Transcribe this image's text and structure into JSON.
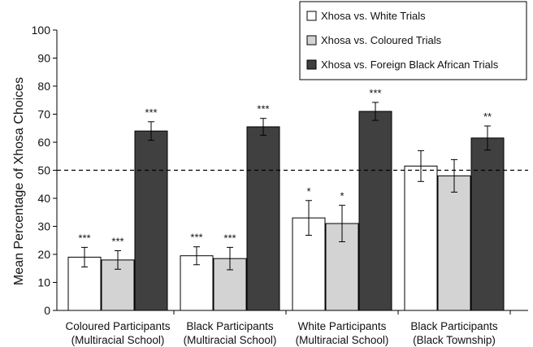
{
  "chart_data": {
    "type": "bar",
    "ylabel": "Mean Percentage of Xhosa Choices",
    "ylim": [
      0,
      100
    ],
    "yticks": [
      0,
      10,
      20,
      30,
      40,
      50,
      60,
      70,
      80,
      90,
      100
    ],
    "reference_line": 50,
    "categories": [
      [
        "Coloured Participants",
        "(Multiracial School)"
      ],
      [
        "Black Participants",
        "(Multiracial School)"
      ],
      [
        "White Participants",
        "(Multiracial School)"
      ],
      [
        "Black Participants",
        "(Black Township)"
      ]
    ],
    "series": [
      {
        "name": "Xhosa vs. White Trials",
        "color": "#ffffff",
        "values": [
          19,
          19.5,
          33,
          51.5
        ],
        "errors": [
          3.5,
          3.2,
          6.2,
          5.5
        ],
        "sig": [
          "***",
          "***",
          "*",
          ""
        ]
      },
      {
        "name": "Xhosa vs. Coloured Trials",
        "color": "#d3d3d3",
        "values": [
          18,
          18.5,
          31,
          48
        ],
        "errors": [
          3.3,
          4.0,
          6.5,
          5.8
        ],
        "sig": [
          "***",
          "***",
          "*",
          ""
        ]
      },
      {
        "name": "Xhosa vs. Foreign Black African Trials",
        "color": "#404040",
        "values": [
          64,
          65.5,
          71,
          61.5
        ],
        "errors": [
          3.3,
          3.0,
          3.2,
          4.3
        ],
        "sig": [
          "***",
          "***",
          "***",
          "**"
        ]
      }
    ],
    "legend_position": "top-right"
  }
}
